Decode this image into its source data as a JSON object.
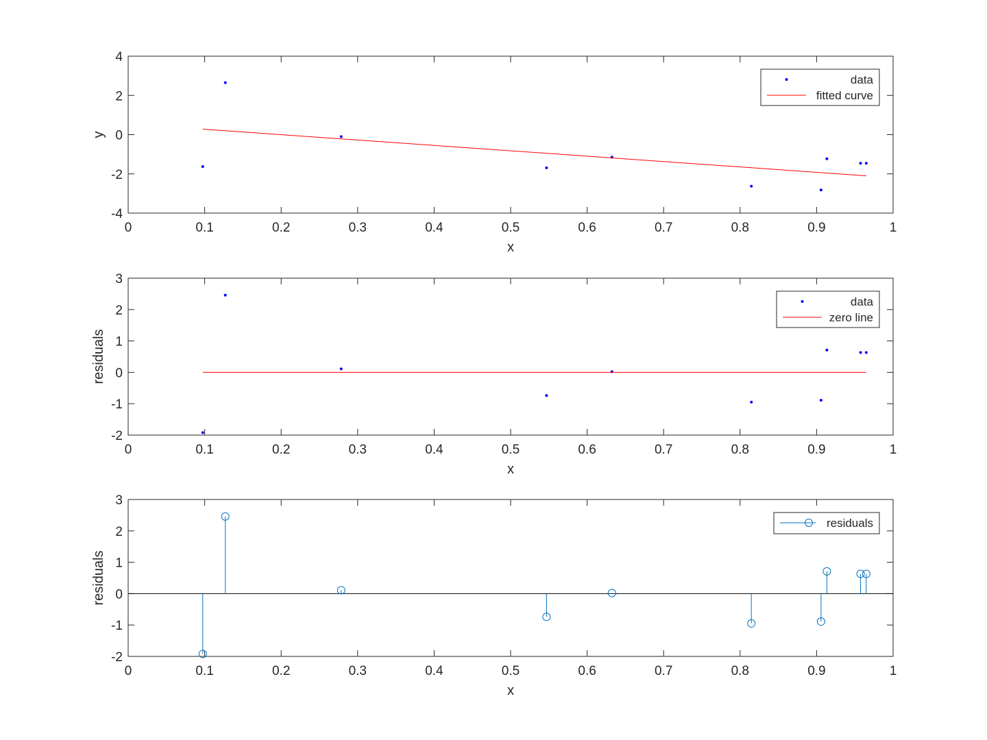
{
  "chart_data": [
    {
      "type": "scatter",
      "xlim": [
        0,
        1
      ],
      "ylim": [
        -4,
        4
      ],
      "xticks": [
        "0",
        "0.1",
        "0.2",
        "0.3",
        "0.4",
        "0.5",
        "0.6",
        "0.7",
        "0.8",
        "0.9",
        "1"
      ],
      "yticks": [
        "-4",
        "-2",
        "0",
        "2",
        "4"
      ],
      "xlabel": "x",
      "ylabel": "y",
      "grid": false,
      "legend_position": "top-right",
      "series": [
        {
          "name": "data",
          "kind": "points",
          "color": "#0000ff",
          "x": [
            0.0975,
            0.127,
            0.2785,
            0.5469,
            0.6324,
            0.8147,
            0.9058,
            0.9134,
            0.9575,
            0.9649
          ],
          "y": [
            -1.63,
            2.65,
            -0.1,
            -1.69,
            -1.15,
            -2.63,
            -2.82,
            -1.23,
            -1.46,
            -1.46
          ]
        },
        {
          "name": "fitted curve",
          "kind": "line",
          "color": "#ff0000",
          "x": [
            0.0975,
            0.9649
          ],
          "y": [
            0.28,
            -2.1
          ]
        }
      ]
    },
    {
      "type": "scatter",
      "xlim": [
        0,
        1
      ],
      "ylim": [
        -2,
        3
      ],
      "xticks": [
        "0",
        "0.1",
        "0.2",
        "0.3",
        "0.4",
        "0.5",
        "0.6",
        "0.7",
        "0.8",
        "0.9",
        "1"
      ],
      "yticks": [
        "-2",
        "-1",
        "0",
        "1",
        "2",
        "3"
      ],
      "xlabel": "x",
      "ylabel": "residuals",
      "grid": false,
      "legend_position": "top-right",
      "series": [
        {
          "name": "data",
          "kind": "points",
          "color": "#0000ff",
          "x": [
            0.0975,
            0.127,
            0.2785,
            0.5469,
            0.6324,
            0.8147,
            0.9058,
            0.9134,
            0.9575,
            0.9649
          ],
          "y": [
            -1.92,
            2.46,
            0.11,
            -0.74,
            0.02,
            -0.95,
            -0.89,
            0.71,
            0.63,
            0.63
          ]
        },
        {
          "name": "zero line",
          "kind": "line",
          "color": "#ff0000",
          "x": [
            0.0975,
            0.9649
          ],
          "y": [
            0,
            0
          ]
        }
      ]
    },
    {
      "type": "stem",
      "xlim": [
        0,
        1
      ],
      "ylim": [
        -2,
        3
      ],
      "xticks": [
        "0",
        "0.1",
        "0.2",
        "0.3",
        "0.4",
        "0.5",
        "0.6",
        "0.7",
        "0.8",
        "0.9",
        "1"
      ],
      "yticks": [
        "-2",
        "-1",
        "0",
        "1",
        "2",
        "3"
      ],
      "xlabel": "x",
      "ylabel": "residuals",
      "grid": false,
      "baseline": 0,
      "legend_position": "top-right",
      "series": [
        {
          "name": "residuals",
          "kind": "stem",
          "color": "#0072bd",
          "x": [
            0.0975,
            0.127,
            0.2785,
            0.5469,
            0.6324,
            0.8147,
            0.9058,
            0.9134,
            0.9575,
            0.9649
          ],
          "y": [
            -1.92,
            2.46,
            0.11,
            -0.74,
            0.02,
            -0.95,
            -0.89,
            0.71,
            0.63,
            0.63
          ]
        }
      ]
    }
  ]
}
